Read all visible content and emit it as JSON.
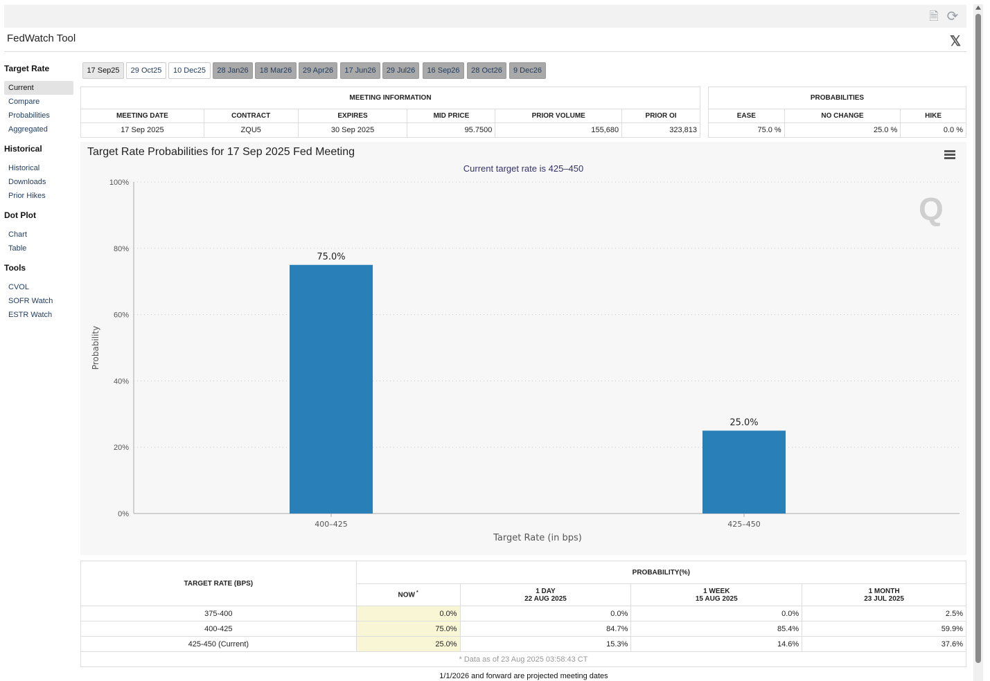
{
  "app": {
    "title": "FedWatch Tool"
  },
  "sidebar": {
    "sections": [
      {
        "title": "Target Rate",
        "items": [
          "Current",
          "Compare",
          "Probabilities",
          "Aggregated"
        ]
      },
      {
        "title": "Historical",
        "items": [
          "Historical",
          "Downloads",
          "Prior Hikes"
        ]
      },
      {
        "title": "Dot Plot",
        "items": [
          "Chart",
          "Table"
        ]
      },
      {
        "title": "Tools",
        "items": [
          "CVOL",
          "SOFR Watch",
          "ESTR Watch"
        ]
      }
    ]
  },
  "tabs": [
    "17 Sep25",
    "29 Oct25",
    "10 Dec25",
    "28 Jan26",
    "18 Mar26",
    "29 Apr26",
    "17 Jun26",
    "29 Jul26",
    "16 Sep26",
    "28 Oct26",
    "9 Dec26"
  ],
  "meeting_info": {
    "header": "MEETING INFORMATION",
    "columns": [
      "MEETING DATE",
      "CONTRACT",
      "EXPIRES",
      "MID PRICE",
      "PRIOR VOLUME",
      "PRIOR OI"
    ],
    "values": [
      "17 Sep 2025",
      "ZQU5",
      "30 Sep 2025",
      "95.7500",
      "155,680",
      "323,813"
    ]
  },
  "probabilities": {
    "header": "PROBABILITIES",
    "columns": [
      "EASE",
      "NO CHANGE",
      "HIKE"
    ],
    "values": [
      "75.0 %",
      "25.0 %",
      "0.0 %"
    ]
  },
  "chart_data": {
    "type": "bar",
    "title": "Target Rate Probabilities for 17 Sep 2025 Fed Meeting",
    "subtitle": "Current target rate is 425–450",
    "categories": [
      "400–425",
      "425–450"
    ],
    "values": [
      75.0,
      25.0
    ],
    "data_labels": [
      "75.0%",
      "25.0%"
    ],
    "xlabel": "Target Rate (in bps)",
    "ylabel": "Probability",
    "ylim": [
      0,
      100
    ],
    "yticks": [
      "0%",
      "20%",
      "40%",
      "60%",
      "80%",
      "100%"
    ],
    "grid": true,
    "bar_color": "#2980b9"
  },
  "bottom_table": {
    "rate_header": "TARGET RATE (BPS)",
    "prob_header": "PROBABILITY(%)",
    "col_headers": [
      {
        "line1": "NOW",
        "line2": ""
      },
      {
        "line1": "1 DAY",
        "line2": "22 AUG 2025"
      },
      {
        "line1": "1 WEEK",
        "line2": "15 AUG 2025"
      },
      {
        "line1": "1 MONTH",
        "line2": "23 JUL 2025"
      }
    ],
    "rows": [
      {
        "rate": "375-400",
        "cells": [
          "0.0%",
          "0.0%",
          "0.0%",
          "2.5%"
        ]
      },
      {
        "rate": "400-425",
        "cells": [
          "75.0%",
          "84.7%",
          "85.4%",
          "59.9%"
        ]
      },
      {
        "rate": "425-450 (Current)",
        "cells": [
          "25.0%",
          "15.3%",
          "14.6%",
          "37.6%"
        ]
      }
    ],
    "footnote": "* Data as of 23 Aug 2025 03:58:43 CT"
  },
  "footer_note": "1/1/2026 and forward are projected meeting dates",
  "watermark": "Q"
}
